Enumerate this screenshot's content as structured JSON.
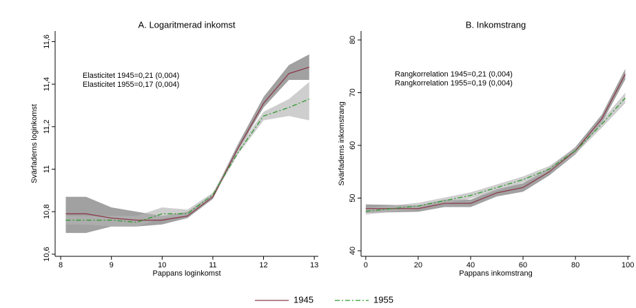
{
  "chart_data": [
    {
      "type": "line",
      "title": "A. Logaritmerad inkomst",
      "x_label": "Pappans loginkomst",
      "y_label": "Svärfaderns loginkomst",
      "annotations": [
        "Elasticitet 1945=0,21 (0,004)",
        "Elasticitet 1955=0,17 (0,004)"
      ],
      "x": [
        8.1,
        8.5,
        9,
        9.5,
        10,
        10.5,
        11,
        11.5,
        12,
        12.5,
        12.9
      ],
      "xlim": [
        7.89,
        13.08
      ],
      "xticks": [
        8,
        9,
        10,
        11,
        12,
        13
      ],
      "ylim": [
        10.59,
        11.65
      ],
      "yticks": [
        {
          "value": 10.6,
          "label": "10,6"
        },
        {
          "value": 10.8,
          "label": "10,8"
        },
        {
          "value": 11,
          "label": "11"
        },
        {
          "value": 11.2,
          "label": "11,2"
        },
        {
          "value": 11.4,
          "label": "11,4"
        },
        {
          "value": 11.6,
          "label": "11,6"
        }
      ],
      "series": [
        {
          "name": "1945",
          "color": "#8b3a4a",
          "dash": "solid",
          "band_color": "#6e6e6e",
          "values": [
            10.79,
            10.79,
            10.77,
            10.76,
            10.76,
            10.78,
            10.87,
            11.1,
            11.31,
            11.45,
            11.48
          ],
          "lower": [
            10.7,
            10.7,
            10.73,
            10.73,
            10.74,
            10.77,
            10.86,
            11.09,
            11.29,
            11.42,
            11.42
          ],
          "upper": [
            10.87,
            10.87,
            10.82,
            10.8,
            10.78,
            10.8,
            10.88,
            11.12,
            11.34,
            11.49,
            11.54
          ]
        },
        {
          "name": "1955",
          "color": "#2e9a2e",
          "dash": "dashdot",
          "band_color": "#b4b4b4",
          "values": [
            10.76,
            10.76,
            10.76,
            10.75,
            10.79,
            10.79,
            10.88,
            11.08,
            11.25,
            11.29,
            11.33
          ],
          "lower": [
            10.74,
            10.74,
            10.73,
            10.73,
            10.77,
            10.78,
            10.87,
            11.07,
            11.23,
            11.25,
            11.23
          ],
          "upper": [
            10.78,
            10.78,
            10.78,
            10.78,
            10.82,
            10.81,
            10.89,
            11.1,
            11.27,
            11.33,
            11.41
          ]
        }
      ]
    },
    {
      "type": "line",
      "title": "B. Inkomstrang",
      "x_label": "Pappans inkomstrang",
      "y_label": "Svärfaderns inkomstrang",
      "annotations": [
        "Rangkorrelation 1945=0,21 (0,004)",
        "Rangkorrelation 1955=0,19 (0,004)"
      ],
      "x": [
        0,
        10,
        20,
        30,
        40,
        50,
        60,
        70,
        80,
        90,
        99
      ],
      "xlim": [
        -1.8,
        101
      ],
      "xticks": [
        0,
        20,
        40,
        60,
        80,
        100
      ],
      "ylim": [
        38.95,
        81.7
      ],
      "yticks": [
        40,
        50,
        60,
        70,
        80
      ],
      "series": [
        {
          "color": "#8b3a4a",
          "dash": "solid",
          "band_color": "#6e6e6e",
          "values": [
            48,
            48,
            48,
            49,
            49,
            51,
            52,
            55,
            59,
            65,
            73.5
          ],
          "lower": [
            47.2,
            47.3,
            47.4,
            48.3,
            48.3,
            50.3,
            51.2,
            54.3,
            58.3,
            64.2,
            72.5
          ],
          "upper": [
            48.8,
            48.7,
            48.6,
            49.7,
            49.7,
            51.7,
            52.8,
            55.7,
            59.7,
            65.8,
            74.5
          ]
        },
        {
          "color": "#2e9a2e",
          "dash": "dashdot",
          "band_color": "#b4b4b4",
          "values": [
            47.5,
            48,
            48.5,
            49.5,
            50.5,
            52,
            53.5,
            55.5,
            59,
            64,
            69
          ],
          "lower": [
            46.9,
            47.4,
            47.9,
            48.9,
            49.9,
            51.4,
            52.9,
            54.9,
            58.4,
            63.3,
            68
          ],
          "upper": [
            48.1,
            48.6,
            49.1,
            50.1,
            51.1,
            52.6,
            54.1,
            56.1,
            59.6,
            64.7,
            70
          ]
        }
      ]
    }
  ]
}
